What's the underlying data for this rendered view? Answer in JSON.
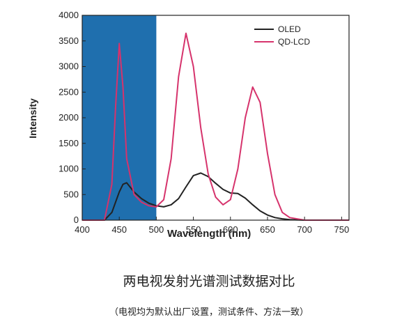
{
  "chart_data": {
    "type": "line",
    "xlabel": "Wavelength (nm)",
    "ylabel": "Intensity",
    "x": [
      400,
      430,
      440,
      445,
      450,
      455,
      460,
      470,
      480,
      490,
      500,
      510,
      520,
      530,
      540,
      550,
      560,
      570,
      580,
      590,
      600,
      610,
      620,
      630,
      640,
      650,
      660,
      670,
      680,
      700,
      760
    ],
    "series": [
      {
        "name": "OLED",
        "color": "#222222",
        "values": [
          0,
          0,
          150,
          350,
          550,
          700,
          730,
          550,
          420,
          330,
          280,
          260,
          300,
          420,
          650,
          870,
          920,
          850,
          720,
          600,
          530,
          520,
          430,
          300,
          180,
          100,
          50,
          25,
          10,
          0,
          0
        ]
      },
      {
        "name": "QD-LCD",
        "color": "#d6336c",
        "values": [
          0,
          0,
          700,
          2200,
          3450,
          2600,
          1200,
          500,
          350,
          280,
          260,
          400,
          1200,
          2800,
          3650,
          3000,
          1800,
          900,
          450,
          300,
          400,
          1000,
          2000,
          2600,
          2300,
          1300,
          500,
          150,
          50,
          0,
          0
        ]
      }
    ],
    "xlim": [
      400,
      760
    ],
    "ylim": [
      0,
      4000
    ],
    "xticks": [
      400,
      450,
      500,
      550,
      600,
      650,
      700,
      750
    ],
    "yticks": [
      0,
      500,
      1000,
      1500,
      2000,
      2500,
      3000,
      3500,
      4000
    ],
    "shaded_region": {
      "xrange": [
        400,
        500
      ],
      "color": "#1f6fae"
    },
    "legend": "upper right"
  },
  "caption": "两电视发射光谱测试数据对比",
  "note": "（电视均为默认出厂设置，测试条件、方法一致）"
}
